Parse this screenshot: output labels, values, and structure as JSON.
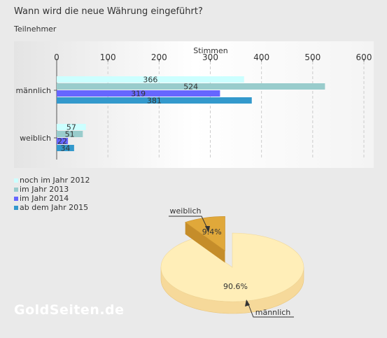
{
  "page": {
    "question": "Wann wird die neue Währung eingeführt?",
    "subtitle": "Teilnehmer",
    "watermark": "GoldSeiten.de"
  },
  "colors": {
    "series": [
      "#ccffff",
      "#99cccc",
      "#6666ff",
      "#3399cc"
    ],
    "pie_maennlich": "#ffeeb8",
    "pie_weiblich": "#e0a83a"
  },
  "chart_data": [
    {
      "type": "bar",
      "orientation": "horizontal",
      "xlabel": "Stimmen",
      "xlim": [
        0,
        600
      ],
      "xticks": [
        0,
        100,
        200,
        300,
        400,
        500,
        600
      ],
      "categories": [
        "männlich",
        "weiblich"
      ],
      "series": [
        {
          "name": "noch im Jahr 2012",
          "values": [
            366,
            57
          ]
        },
        {
          "name": "im Jahr 2013",
          "values": [
            524,
            51
          ]
        },
        {
          "name": "im Jahr 2014",
          "values": [
            319,
            22
          ]
        },
        {
          "name": "ab dem Jahr 2015",
          "values": [
            381,
            34
          ]
        }
      ],
      "grid": true,
      "legend": "bottom-left"
    },
    {
      "type": "pie",
      "style": "3d-exploded",
      "slices": [
        {
          "label": "männlich",
          "value": 90.6,
          "value_label": "90.6%"
        },
        {
          "label": "weiblich",
          "value": 9.4,
          "value_label": "9.4%"
        }
      ]
    }
  ]
}
